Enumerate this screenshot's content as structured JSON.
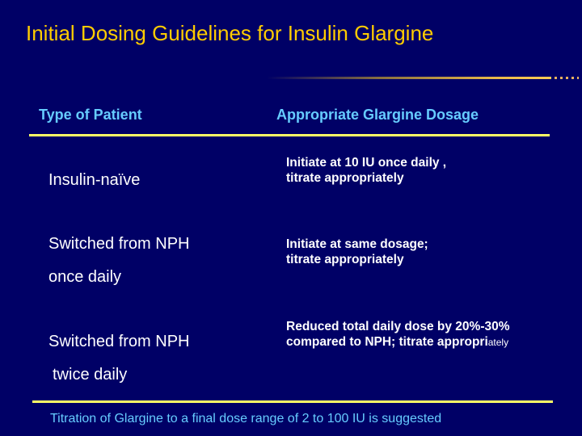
{
  "title": "Initial Dosing Guidelines for Insulin Glargine",
  "colors": {
    "background": "#000066",
    "title": "#ffcc00",
    "header": "#66ccff",
    "rule": "#ffff66"
  },
  "table": {
    "headers": [
      "Type of Patient",
      "Appropriate  Glargine  Dosage"
    ],
    "rows": [
      {
        "patient": [
          "Insulin-naïve"
        ],
        "dosage": [
          "Initiate at 10 IU once daily ,",
          "titrate appropriately"
        ]
      },
      {
        "patient": [
          "Switched from NPH",
          "once daily"
        ],
        "dosage": [
          "Initiate at same dosage;",
          "titrate appropriately"
        ]
      },
      {
        "patient": [
          "Switched from NPH",
          "twice daily"
        ],
        "dosage": [
          "Reduced total daily dose by  20%-30%",
          "compared to NPH;  titrate appropri",
          "ately"
        ]
      }
    ]
  },
  "footer": "Titration of Glargine  to a final dose range of 2 to 100 IU is suggested"
}
